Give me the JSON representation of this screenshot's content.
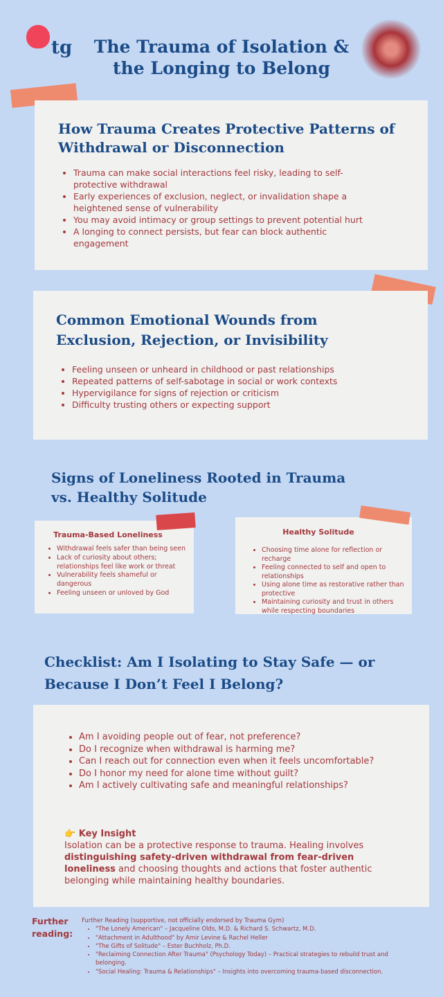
{
  "header": {
    "logo_text": "tg",
    "title_line1": "The Trauma of Isolation &",
    "title_line2": "the Longing to Belong"
  },
  "section1": {
    "heading": "How Trauma Creates Protective Patterns of Withdrawal or Disconnection",
    "items": [
      "Trauma can make social interactions feel risky, leading to self-protective withdrawal",
      "Early experiences of exclusion, neglect, or invalidation shape a heightened sense of vulnerability",
      "You may avoid intimacy or group settings to prevent potential hurt",
      "A longing to connect persists, but fear can block authentic engagement"
    ]
  },
  "section2": {
    "heading": "Common Emotional Wounds from Exclusion, Rejection, or Invisibility",
    "items": [
      "Feeling unseen or unheard in childhood or past relationships",
      "Repeated patterns of self-sabotage in social or work contexts",
      "Hypervigilance for signs of rejection or criticism",
      "Difficulty trusting others or expecting support"
    ]
  },
  "section3": {
    "heading": "Signs of Loneliness Rooted in Trauma vs. Healthy Solitude",
    "left": {
      "title": "Trauma-Based Loneliness",
      "items": [
        "Withdrawal feels safer than being seen",
        "Lack of curiosity about others; relationships feel like work or threat",
        "Vulnerability feels shameful or dangerous",
        "Feeling unseen or unloved by God"
      ]
    },
    "right": {
      "title": "Healthy Solitude",
      "items": [
        "Choosing time alone for reflection or recharge",
        "Feeling connected to self and open to relationships",
        "Using alone time as restorative rather than protective",
        "Maintaining curiosity and trust in others while respecting boundaries"
      ]
    }
  },
  "section4": {
    "heading": "Checklist: Am I Isolating to Stay Safe — or Because I Don’t Feel I Belong?",
    "items": [
      "Am I avoiding people out of fear, not preference?",
      "Do I recognize when withdrawal is harming me?",
      "Can I reach out for connection even when it feels uncomfortable?",
      "Do I honor my need for alone time without guilt?",
      "Am I actively cultivating safe and meaningful relationships?"
    ],
    "insight_icon": "👉",
    "insight_title": "Key Insight",
    "insight_pre": "Isolation can be a protective response to trauma. Healing involves ",
    "insight_bold": "distinguishing safety-driven withdrawal from fear-driven loneliness",
    "insight_post": " and choosing thoughts and actions that foster authentic belonging while maintaining healthy boundaries."
  },
  "further": {
    "label": "Further reading:",
    "intro": "Further Reading (supportive, not officially endorsed by Trauma Gym)",
    "items": [
      "\"The Lonely American\" – Jacqueline Olds, M.D. & Richard S. Schwartz, M.D.",
      "\"Attachment in Adulthood\" by Amir Levine & Rachel Heller",
      "\"The Gifts of Solitude\" – Ester Buchholz, Ph.D.",
      "\"Reclaiming Connection After Trauma\" (Psychology Today) – Practical strategies to rebuild trust and belonging.",
      "\"Social Healing: Trauma & Relationships\" – Insights into overcoming trauma-based disconnection."
    ]
  },
  "colors": {
    "background": "#c4d8f4",
    "heading": "#1b4b86",
    "text": "#a3383c",
    "panel": "#f1f1f0",
    "tape": "#ee8a6e"
  }
}
